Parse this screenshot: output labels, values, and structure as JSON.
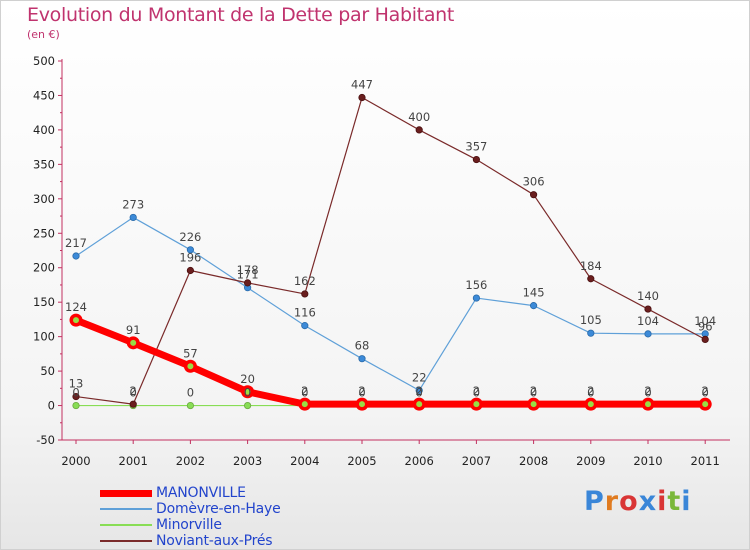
{
  "header": {
    "title": "Evolution du Montant de la Dette par Habitant",
    "subtitle": "(en €)"
  },
  "logo": {
    "letters": [
      "P",
      "r",
      "o",
      "x",
      "i",
      "t",
      "i"
    ],
    "colors": [
      "#3a86d8",
      "#e07b20",
      "#d93535",
      "#3a86d8",
      "#d93535",
      "#7ab83a",
      "#3a86d8"
    ]
  },
  "chart_data": {
    "type": "line",
    "x": [
      "2000",
      "2001",
      "2002",
      "2003",
      "2004",
      "2005",
      "2006",
      "2007",
      "2008",
      "2009",
      "2010",
      "2011"
    ],
    "ylim": [
      -50,
      500
    ],
    "yticks": [
      -50,
      0,
      50,
      100,
      150,
      200,
      250,
      300,
      350,
      400,
      450,
      500
    ],
    "grid": false,
    "legend_position": "bottom-left",
    "series": [
      {
        "name": "MANONVILLE",
        "color": "#ff0000",
        "values": [
          124,
          91,
          57,
          20,
          2,
          2,
          2,
          2,
          2,
          2,
          2,
          2
        ],
        "labels": [
          "124",
          "91",
          "57",
          "20",
          "2",
          "2",
          "2",
          "2",
          "2",
          "2",
          "2",
          "2"
        ]
      },
      {
        "name": "Domèvre-en-Haye",
        "color": "#5fa0d8",
        "values": [
          217,
          273,
          226,
          171,
          116,
          68,
          22,
          156,
          145,
          105,
          104,
          104
        ],
        "labels": [
          "217",
          "273",
          "226",
          "171",
          "116",
          "68",
          "22",
          "156",
          "145",
          "105",
          "104",
          "104"
        ]
      },
      {
        "name": "Minorville",
        "color": "#88dd55",
        "values": [
          0,
          0,
          0,
          0,
          0,
          0,
          0,
          0,
          0,
          0,
          0,
          0
        ],
        "labels": [
          "0",
          "0",
          "0",
          "0",
          "0",
          "0",
          "0",
          "0",
          "0",
          "0",
          "0",
          "0"
        ]
      },
      {
        "name": "Noviant-aux-Prés",
        "color": "#7a2a2a",
        "values": [
          13,
          2,
          196,
          178,
          162,
          447,
          400,
          357,
          306,
          184,
          140,
          96
        ],
        "labels": [
          "13",
          "2",
          "196",
          "178",
          "162",
          "447",
          "400",
          "357",
          "306",
          "184",
          "140",
          "96"
        ]
      }
    ]
  }
}
